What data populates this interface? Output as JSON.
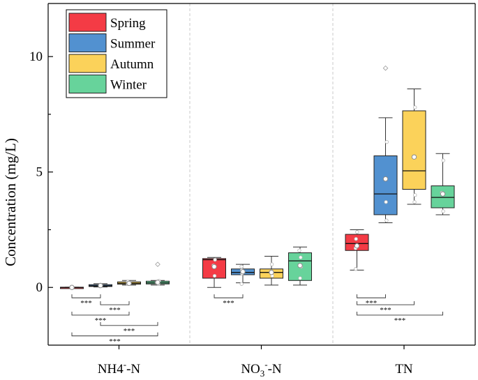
{
  "chart_data": {
    "type": "box",
    "ylabel": "Concentration (mg/L)",
    "ylim": [
      -2.5,
      12.3
    ],
    "yticks": [
      0,
      5,
      10
    ],
    "ytick_labels": [
      "0",
      "5",
      "10"
    ],
    "categories": [
      {
        "id": "nh4",
        "parts": [
          {
            "t": "NH4"
          },
          {
            "t": "-",
            "sup": true
          },
          {
            "t": "-N"
          }
        ]
      },
      {
        "id": "no3",
        "parts": [
          {
            "t": "NO"
          },
          {
            "t": "3",
            "sub": true
          },
          {
            "t": "-",
            "sup": true
          },
          {
            "t": "-N"
          }
        ]
      },
      {
        "id": "tn",
        "parts": [
          {
            "t": "TN"
          }
        ]
      }
    ],
    "legend": {
      "position": "top-left",
      "entries": [
        "Spring",
        "Summer",
        "Autumn",
        "Winter"
      ]
    },
    "series_colors": [
      "#f43b45",
      "#5291d0",
      "#fbd25a",
      "#67d39b"
    ],
    "boxes": [
      {
        "category": "nh4",
        "season": "Spring",
        "whisker_low": 0.0,
        "q1": 0.0,
        "median": 0.0,
        "q3": 0.01,
        "whisker_high": 0.01,
        "mean": 0.0,
        "points": [
          0.0,
          0.0,
          0.0
        ],
        "outliers": []
      },
      {
        "category": "nh4",
        "season": "Summer",
        "whisker_low": 0.02,
        "q1": 0.04,
        "median": 0.07,
        "q3": 0.12,
        "whisker_high": 0.16,
        "mean": 0.08,
        "points": [
          0.05,
          0.09,
          0.12
        ],
        "outliers": []
      },
      {
        "category": "nh4",
        "season": "Autumn",
        "whisker_low": 0.1,
        "q1": 0.14,
        "median": 0.18,
        "q3": 0.24,
        "whisker_high": 0.3,
        "mean": 0.18,
        "points": [
          0.15,
          0.2,
          0.25
        ],
        "outliers": []
      },
      {
        "category": "nh4",
        "season": "Winter",
        "whisker_low": 0.1,
        "q1": 0.15,
        "median": 0.2,
        "q3": 0.27,
        "whisker_high": 0.3,
        "mean": 0.22,
        "points": [
          0.15,
          0.22,
          0.28
        ],
        "outliers": [
          1.0
        ]
      },
      {
        "category": "no3",
        "season": "Spring",
        "whisker_low": 0.0,
        "q1": 0.4,
        "median": 1.2,
        "q3": 1.25,
        "whisker_high": 1.3,
        "mean": 0.9,
        "points": [
          0.5,
          0.95,
          1.2
        ],
        "outliers": []
      },
      {
        "category": "no3",
        "season": "Summer",
        "whisker_low": 0.2,
        "q1": 0.55,
        "median": 0.65,
        "q3": 0.8,
        "whisker_high": 1.0,
        "mean": 0.68,
        "points": [
          0.15,
          0.6,
          0.75,
          0.9
        ],
        "outliers": []
      },
      {
        "category": "no3",
        "season": "Autumn",
        "whisker_low": 0.1,
        "q1": 0.4,
        "median": 0.65,
        "q3": 0.8,
        "whisker_high": 1.35,
        "mean": 0.65,
        "points": [
          0.5,
          0.7,
          1.0
        ],
        "outliers": []
      },
      {
        "category": "no3",
        "season": "Winter",
        "whisker_low": 0.1,
        "q1": 0.3,
        "median": 1.15,
        "q3": 1.5,
        "whisker_high": 1.75,
        "mean": 0.95,
        "points": [
          0.4,
          0.9,
          1.3,
          1.6
        ],
        "outliers": []
      },
      {
        "category": "tn",
        "season": "Spring",
        "whisker_low": 0.75,
        "q1": 1.6,
        "median": 1.9,
        "q3": 2.3,
        "whisker_high": 2.5,
        "mean": 1.8,
        "points": [
          0.8,
          1.7,
          2.1,
          2.4
        ],
        "outliers": []
      },
      {
        "category": "tn",
        "season": "Summer",
        "whisker_low": 2.8,
        "q1": 3.15,
        "median": 4.05,
        "q3": 5.7,
        "whisker_high": 7.35,
        "mean": 4.7,
        "points": [
          2.9,
          3.7,
          4.7,
          6.3
        ],
        "outliers": [
          9.5
        ]
      },
      {
        "category": "tn",
        "season": "Autumn",
        "whisker_low": 3.6,
        "q1": 4.25,
        "median": 5.05,
        "q3": 7.65,
        "whisker_high": 8.6,
        "mean": 5.65,
        "points": [
          3.7,
          4.0,
          5.65,
          7.8
        ],
        "outliers": []
      },
      {
        "category": "tn",
        "season": "Winter",
        "whisker_low": 3.15,
        "q1": 3.45,
        "median": 3.9,
        "q3": 4.4,
        "whisker_high": 5.8,
        "mean": 4.05,
        "points": [
          3.3,
          4.1,
          5.5
        ],
        "outliers": []
      }
    ],
    "significance": [
      {
        "category": "nh4",
        "from": "Spring",
        "to": "Summer",
        "y": -0.45,
        "label": "***"
      },
      {
        "category": "nh4",
        "from": "Summer",
        "to": "Autumn",
        "y": -0.75,
        "label": "***"
      },
      {
        "category": "nh4",
        "from": "Spring",
        "to": "Autumn",
        "y": -1.2,
        "label": "***"
      },
      {
        "category": "nh4",
        "from": "Summer",
        "to": "Winter",
        "y": -1.65,
        "label": "***"
      },
      {
        "category": "nh4",
        "from": "Spring",
        "to": "Winter",
        "y": -2.1,
        "label": "***"
      },
      {
        "category": "no3",
        "from": "Spring",
        "to": "Summer",
        "y": -0.45,
        "label": "***"
      },
      {
        "category": "tn",
        "from": "Spring",
        "to": "Summer",
        "y": -0.45,
        "label": "***"
      },
      {
        "category": "tn",
        "from": "Spring",
        "to": "Autumn",
        "y": -0.75,
        "label": "***"
      },
      {
        "category": "tn",
        "from": "Spring",
        "to": "Winter",
        "y": -1.2,
        "label": "***"
      }
    ]
  }
}
